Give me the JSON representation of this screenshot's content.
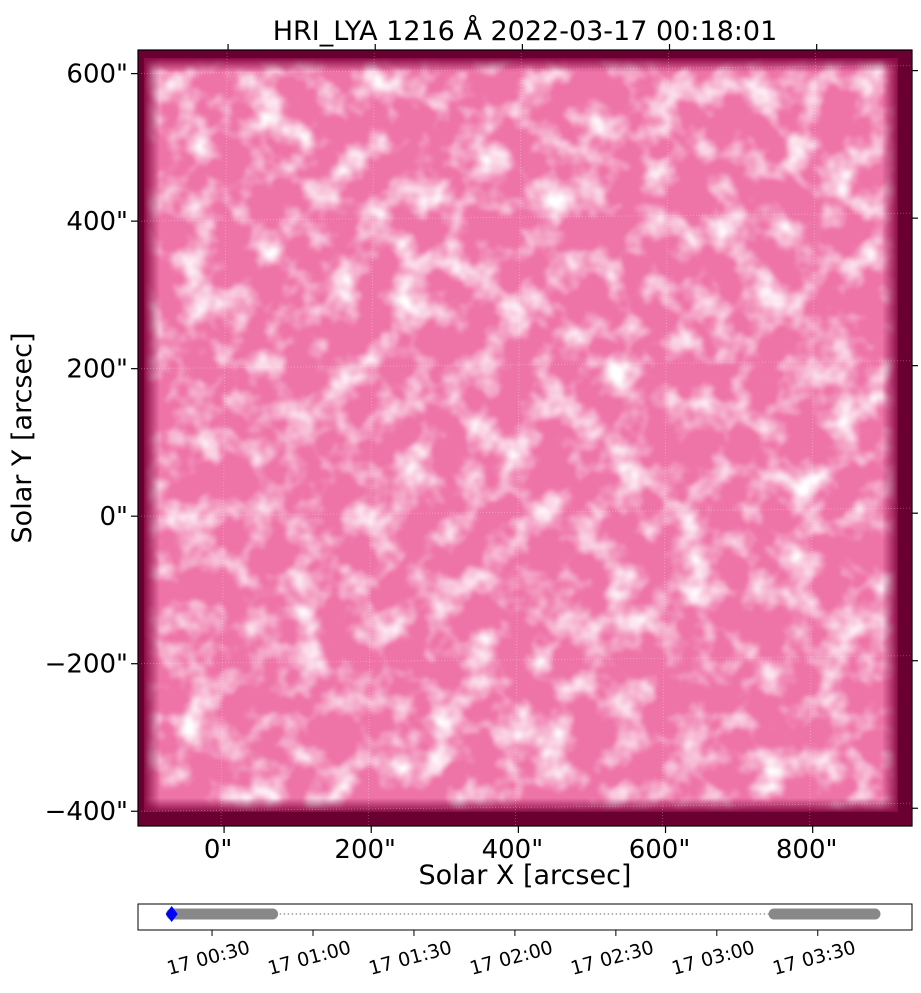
{
  "chart_data": [
    {
      "type": "heatmap",
      "title": "HRI_LYA 1216 Å 2022-03-17 00:18:01",
      "xlabel": "Solar X [arcsec]",
      "ylabel": "Solar Y [arcsec]",
      "xlim": [
        -117,
        935
      ],
      "ylim": [
        -420,
        632
      ],
      "x_ticks": [
        {
          "value": 0,
          "label": "0\""
        },
        {
          "value": 200,
          "label": "200\""
        },
        {
          "value": 400,
          "label": "400\""
        },
        {
          "value": 600,
          "label": "600\""
        },
        {
          "value": 800,
          "label": "800\""
        }
      ],
      "y_ticks": [
        {
          "value": 600,
          "label": "600\""
        },
        {
          "value": 400,
          "label": "400\""
        },
        {
          "value": 200,
          "label": "200\""
        },
        {
          "value": 0,
          "label": "0\""
        },
        {
          "value": -200,
          "label": "−200\""
        },
        {
          "value": -400,
          "label": "−400\""
        }
      ],
      "colormap": [
        "#5c0028",
        "#9a0a4c",
        "#e0508e",
        "#f58ab8",
        "#fbc6df",
        "#ffffff"
      ],
      "grid": true
    },
    {
      "type": "scatter",
      "x_ticks": [
        {
          "value": 30,
          "label": "17 00:30"
        },
        {
          "value": 60,
          "label": "17 01:00"
        },
        {
          "value": 90,
          "label": "17 01:30"
        },
        {
          "value": 120,
          "label": "17 02:00"
        },
        {
          "value": 150,
          "label": "17 02:30"
        },
        {
          "value": 180,
          "label": "17 03:00"
        },
        {
          "value": 210,
          "label": "17 03:30"
        }
      ],
      "xlim": [
        8,
        238
      ],
      "observation_segments": [
        [
          18,
          48
        ],
        [
          197,
          227
        ]
      ],
      "connector": [
        18,
        227
      ],
      "current_time": 18,
      "colors": {
        "segments": "#888888",
        "connector": "#888888",
        "current": "#0000ff"
      }
    }
  ]
}
